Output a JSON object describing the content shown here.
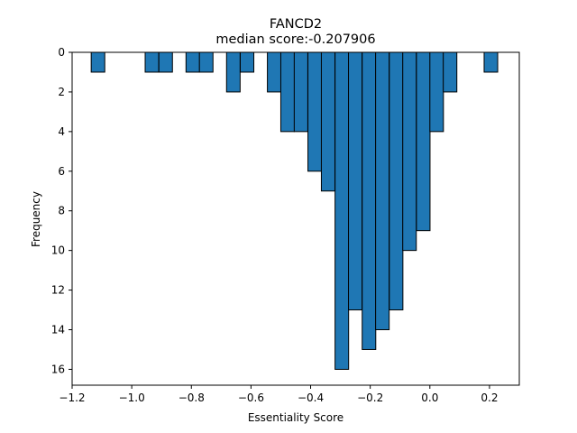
{
  "chart_data": {
    "type": "bar",
    "title": "FANCD2",
    "subtitle": "median score:-0.207906",
    "xlabel": "Essentiality Score",
    "ylabel": "Frequency",
    "y_axis_inverted": true,
    "xlim": [
      -1.2,
      0.3
    ],
    "ylim": [
      0,
      16.8
    ],
    "grid": false,
    "bar_color": "#1f77b4",
    "edge_color": "#000000",
    "bin_width": 0.0455,
    "x_ticks": [
      -1.2,
      -1.0,
      -0.8,
      -0.6,
      -0.4,
      -0.2,
      0.0,
      0.2
    ],
    "x_tick_labels": [
      "−1.2",
      "−1.0",
      "−0.8",
      "−0.6",
      "−0.4",
      "−0.2",
      "0.0",
      "0.2"
    ],
    "y_ticks": [
      0,
      2,
      4,
      6,
      8,
      10,
      12,
      14,
      16
    ],
    "y_tick_labels": [
      "0",
      "2",
      "4",
      "6",
      "8",
      "10",
      "12",
      "14",
      "16"
    ],
    "bins": [
      {
        "x0": -1.136,
        "value": 1
      },
      {
        "x0": -0.955,
        "value": 1
      },
      {
        "x0": -0.909,
        "value": 1
      },
      {
        "x0": -0.818,
        "value": 1
      },
      {
        "x0": -0.773,
        "value": 1
      },
      {
        "x0": -0.682,
        "value": 2
      },
      {
        "x0": -0.636,
        "value": 1
      },
      {
        "x0": -0.545,
        "value": 2
      },
      {
        "x0": -0.5,
        "value": 4
      },
      {
        "x0": -0.455,
        "value": 4
      },
      {
        "x0": -0.409,
        "value": 6
      },
      {
        "x0": -0.364,
        "value": 7
      },
      {
        "x0": -0.318,
        "value": 16
      },
      {
        "x0": -0.273,
        "value": 13
      },
      {
        "x0": -0.227,
        "value": 15
      },
      {
        "x0": -0.182,
        "value": 14
      },
      {
        "x0": -0.136,
        "value": 13
      },
      {
        "x0": -0.091,
        "value": 10
      },
      {
        "x0": -0.045,
        "value": 9
      },
      {
        "x0": 0.0,
        "value": 4
      },
      {
        "x0": 0.045,
        "value": 2
      },
      {
        "x0": 0.182,
        "value": 1
      }
    ]
  }
}
